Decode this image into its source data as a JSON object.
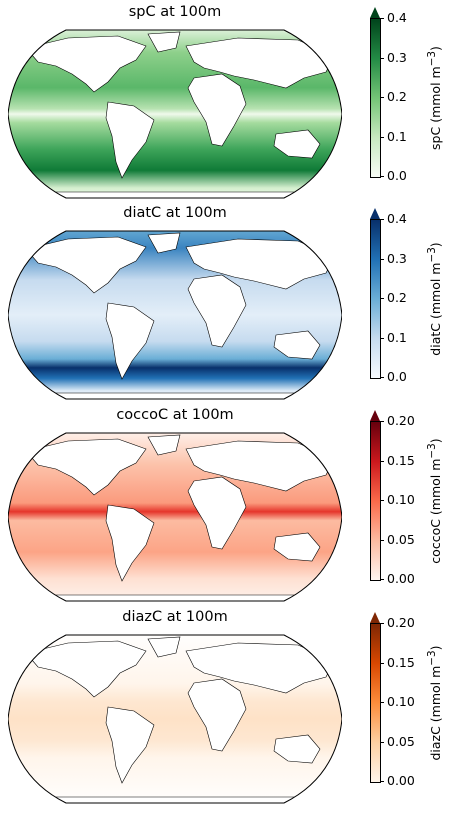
{
  "panels": [
    {
      "title": "spC at 100m",
      "cbar_label": "spC (mmol m",
      "cbar_exp": "−3",
      "cbar_close": ")",
      "ticks": [
        "0.0",
        "0.1",
        "0.2",
        "0.3",
        "0.4"
      ],
      "colors": {
        "low": "#f7fcf5",
        "mid": "#74c476",
        "high": "#00441b"
      }
    },
    {
      "title": "diatC at 100m",
      "cbar_label": "diatC (mmol m",
      "cbar_exp": "−3",
      "cbar_close": ")",
      "ticks": [
        "0.0",
        "0.1",
        "0.2",
        "0.3",
        "0.4"
      ],
      "colors": {
        "low": "#f7fbff",
        "mid": "#6baed6",
        "high": "#08306b"
      }
    },
    {
      "title": "coccoC at 100m",
      "cbar_label": "coccoC (mmol m",
      "cbar_exp": "−3",
      "cbar_close": ")",
      "ticks": [
        "0.00",
        "0.05",
        "0.10",
        "0.15",
        "0.20"
      ],
      "colors": {
        "low": "#fff5f0",
        "mid": "#fb6a4a",
        "high": "#67000d"
      }
    },
    {
      "title": "diazC at 100m",
      "cbar_label": "diazC (mmol m",
      "cbar_exp": "−3",
      "cbar_close": ")",
      "ticks": [
        "0.00",
        "0.05",
        "0.10",
        "0.15",
        "0.20"
      ],
      "colors": {
        "low": "#fff5eb",
        "mid": "#fd8d3c",
        "high": "#7f2704"
      }
    }
  ]
}
